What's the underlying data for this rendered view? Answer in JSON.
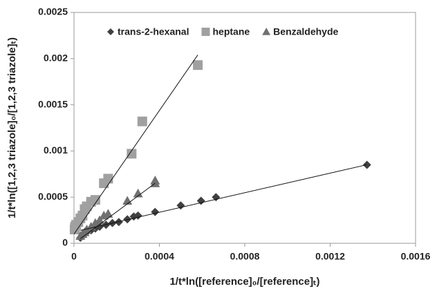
{
  "chart_data": {
    "type": "scatter",
    "xlabel": "1/t*ln([reference]₀/[reference]ₜ)",
    "ylabel": "1/t*ln([1,2,3 triazole]₀/[1,2,3 triazole]ₜ)",
    "xlim": [
      0,
      0.0016
    ],
    "xticks": [
      0,
      0.0004,
      0.0008,
      0.0012,
      0.0016
    ],
    "ylim": [
      0,
      0.0025
    ],
    "yticks": [
      0,
      0.0005,
      0.001,
      0.0015,
      0.002,
      0.0025
    ],
    "grid": false,
    "legend": "top",
    "series": [
      {
        "name": "trans-2-hexanal",
        "color": "#404040",
        "marker": "diamond",
        "x": [
          0.0013725,
          0.000665,
          0.000595,
          0.0005,
          0.00038,
          0.0003,
          0.00028,
          0.00025,
          0.00021,
          0.00018,
          0.00015,
          0.00012,
          0.0001,
          8e-05,
          6e-05,
          5e-05,
          4e-05,
          3e-05
        ],
        "values": [
          0.00085,
          0.0005,
          0.00046,
          0.00041,
          0.00034,
          0.0003,
          0.00029,
          0.00026,
          0.00023,
          0.00022,
          0.0002,
          0.00018,
          0.00016,
          0.00014,
          0.00012,
          0.0001,
          8e-05,
          6e-05
        ],
        "trendline": {
          "x": [
            3e-05,
            0.00137
          ],
          "y": [
            0.00014,
            0.00085
          ]
        }
      },
      {
        "name": "heptane",
        "color": "#a0a0a0",
        "marker": "square",
        "x": [
          0.00058,
          0.00032,
          0.00027,
          0.00016,
          0.00014,
          0.0001,
          8e-05,
          6e-05,
          5e-05,
          4e-05,
          3e-05,
          2e-05,
          1e-05,
          5e-06,
          3e-06
        ],
        "values": [
          0.00193,
          0.00132,
          0.00097,
          0.0007,
          0.00065,
          0.00047,
          0.00045,
          0.0004,
          0.00037,
          0.0003,
          0.00027,
          0.00023,
          0.0002,
          0.00018,
          0.00015
        ],
        "trendline": {
          "x": [
            0,
            0.00058
          ],
          "y": [
            0.0001,
            0.00204
          ]
        }
      },
      {
        "name": "Benzaldehyde",
        "color": "#707070",
        "marker": "triangle",
        "x": [
          0.00038,
          0.00038,
          0.0003,
          0.00025,
          0.00016,
          0.00014,
          0.00012,
          0.0001,
          8e-05,
          6e-05,
          5e-05,
          4e-05,
          3e-05
        ],
        "values": [
          0.00068,
          0.00065,
          0.00054,
          0.00046,
          0.00032,
          0.0003,
          0.00025,
          0.00022,
          0.00018,
          0.00015,
          0.00012,
          0.0001,
          8e-05
        ],
        "trendline": {
          "x": [
            3e-05,
            0.00038
          ],
          "y": [
            5e-05,
            0.00065
          ]
        }
      }
    ]
  }
}
